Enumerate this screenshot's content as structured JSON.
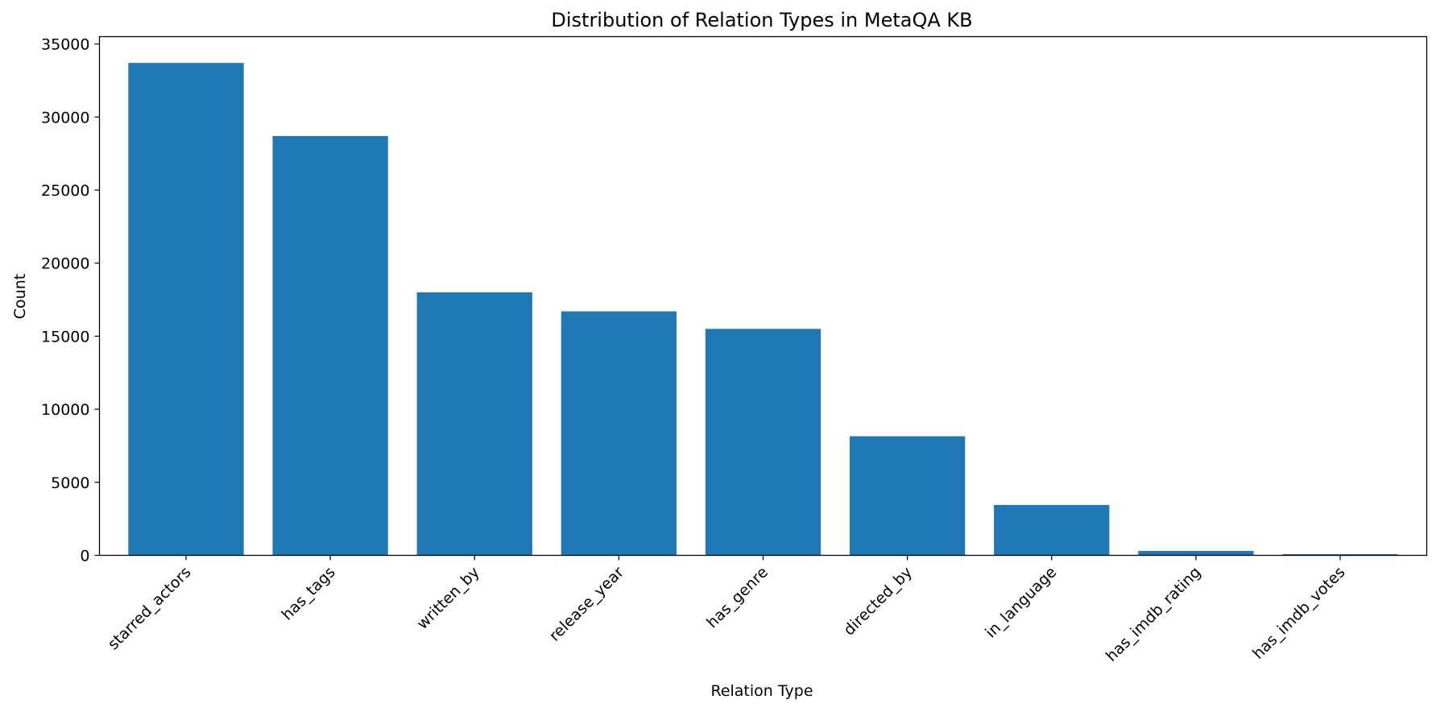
{
  "chart_data": {
    "type": "bar",
    "title": "Distribution of Relation Types in MetaQA KB",
    "xlabel": "Relation Type",
    "ylabel": "Count",
    "categories": [
      "starred_actors",
      "has_tags",
      "written_by",
      "release_year",
      "has_genre",
      "directed_by",
      "in_language",
      "has_imdb_rating",
      "has_imdb_votes"
    ],
    "values": [
      33700,
      28700,
      18000,
      16700,
      15500,
      8150,
      3450,
      300,
      80
    ],
    "ylim": [
      0,
      35500
    ],
    "yticks": [
      0,
      5000,
      10000,
      15000,
      20000,
      25000,
      30000,
      35000
    ],
    "bar_color": "#1f77b4",
    "grid": false,
    "legend": "none"
  }
}
